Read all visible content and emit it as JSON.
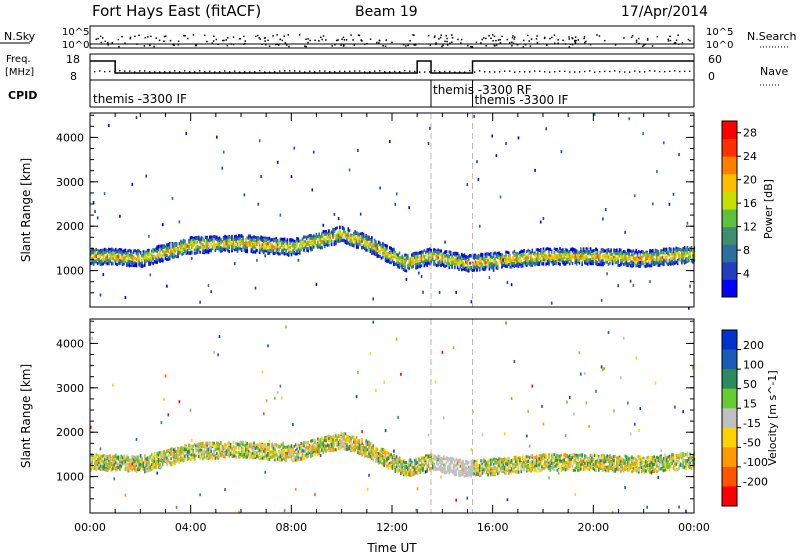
{
  "header": {
    "title": "Fort Hays East (fitACF)",
    "beam": "Beam 19",
    "date": "17/Apr/2014"
  },
  "status_panel": {
    "nsky_label": "N.Sky",
    "nsky_ticks": [
      "10^5",
      "10^0"
    ],
    "nsearch_label": "N.Search",
    "nsearch_ticks": [
      "10^5",
      "10^0"
    ],
    "freq_label": "Freq.",
    "freq_unit": "[MHz]",
    "freq_ticks": [
      18,
      8
    ],
    "nave_label": "Nave",
    "nave_ticks": [
      60,
      0
    ],
    "cpid_label": "CPID",
    "cpid_segments": [
      {
        "label": "themis -3300 IF",
        "start_h": 0.0
      },
      {
        "label": "themis -3300 RF",
        "start_h": 13.55
      },
      {
        "label": "themis -3300 IF",
        "start_h": 15.2
      }
    ],
    "freq_high_windows_h": [
      [
        0.0,
        1.0
      ],
      [
        13.0,
        13.55
      ],
      [
        15.2,
        24.0
      ]
    ]
  },
  "chart_data": [
    {
      "type": "heatmap",
      "name": "Power",
      "ylabel": "Slant Range [km]",
      "yticks": [
        1000,
        2000,
        3000,
        4000
      ],
      "ylim": [
        180,
        4550
      ],
      "xlim": [
        0,
        24
      ],
      "colorbar": {
        "label": "Power [dB]",
        "ticks": [
          4,
          8,
          12,
          16,
          20,
          24,
          28
        ],
        "range": [
          0,
          30
        ],
        "colors": [
          "#0000ff",
          "#1f3fbf",
          "#2f6fa0",
          "#3f8f6f",
          "#5fbf3f",
          "#c8e000",
          "#ffbf00",
          "#ff8000",
          "#ff3000",
          "#ff0000"
        ]
      },
      "echo_band": {
        "center_km": [
          [
            0,
            1350
          ],
          [
            1,
            1350
          ],
          [
            2,
            1300
          ],
          [
            3,
            1450
          ],
          [
            4,
            1600
          ],
          [
            6,
            1650
          ],
          [
            8,
            1550
          ],
          [
            10,
            1850
          ],
          [
            11,
            1650
          ],
          [
            12.5,
            1200
          ],
          [
            13.5,
            1350
          ],
          [
            15,
            1200
          ],
          [
            16,
            1250
          ],
          [
            18,
            1350
          ],
          [
            20,
            1350
          ],
          [
            22,
            1300
          ],
          [
            24,
            1400
          ]
        ],
        "typical_power_db": 12
      },
      "dashed_lines_h": [
        13.55,
        15.2
      ]
    },
    {
      "type": "heatmap",
      "name": "Velocity",
      "ylabel": "Slant Range [km]",
      "yticks": [
        1000,
        2000,
        3000,
        4000
      ],
      "ylim": [
        180,
        4550
      ],
      "xlim": [
        0,
        24
      ],
      "xticks": [
        "00:00",
        "04:00",
        "08:00",
        "12:00",
        "16:00",
        "20:00",
        "00:00"
      ],
      "xlabel": "Time UT",
      "colorbar": {
        "label": "Velocity [m s^-1]",
        "ticks": [
          "200",
          "100",
          "50",
          "15",
          "-15",
          "-50",
          "-100",
          "-200"
        ],
        "colors": [
          "#0033cc",
          "#1c5bb7",
          "#2d8a5f",
          "#66cc33",
          "#c0c0c0",
          "#ffd200",
          "#ff9900",
          "#ff5500",
          "#ff0000"
        ]
      },
      "ground_scatter_window_h": [
        13.6,
        15.2
      ],
      "dashed_lines_h": [
        13.55,
        15.2
      ]
    }
  ]
}
